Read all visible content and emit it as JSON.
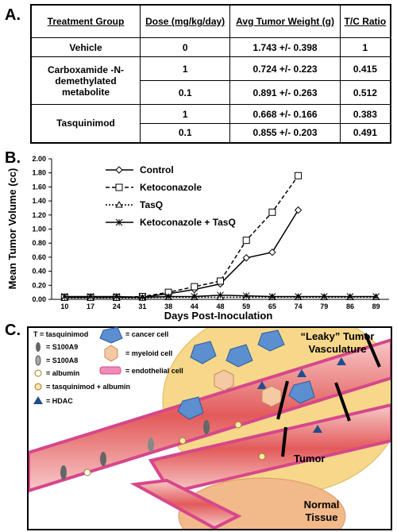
{
  "panel_labels": [
    "A.",
    "B.",
    "C."
  ],
  "table": {
    "header": [
      "Treatment Group",
      "Dose (mg/kg/day)",
      "Avg Tumor Weight (g)",
      "T/C Ratio"
    ],
    "groups": [
      {
        "name": "Vehicle",
        "rows": [
          [
            "0",
            "1.743 +/- 0.398",
            "1"
          ]
        ]
      },
      {
        "name": "Carboxamide -N-demethylated metabolite",
        "rows": [
          [
            "1",
            "0.724 +/- 0.223",
            "0.415"
          ],
          [
            "0.1",
            "0.891 +/- 0.263",
            "0.512"
          ]
        ]
      },
      {
        "name": "Tasquinimod",
        "rows": [
          [
            "1",
            "0.668 +/- 0.166",
            "0.383"
          ],
          [
            "0.1",
            "0.855 +/- 0.203",
            "0.491"
          ]
        ]
      }
    ]
  },
  "chart_data": {
    "type": "line",
    "xlabel": "Days Post-Inoculation",
    "ylabel": "Mean Tumor Volume (cc)",
    "categories": [
      10,
      17,
      24,
      31,
      38,
      44,
      48,
      59,
      65,
      74,
      79,
      86,
      89
    ],
    "ylim": [
      0,
      2
    ],
    "yticks": [
      {
        "value": 0,
        "label": "0.00"
      },
      {
        "value": 0.2,
        "label": "0.20"
      },
      {
        "value": 0.4,
        "label": "0.40"
      },
      {
        "value": 0.6,
        "label": "0.60"
      },
      {
        "value": 0.8,
        "label": "0.80"
      },
      {
        "value": 1,
        "label": "1.00"
      },
      {
        "value": 1.2,
        "label": "1.20"
      },
      {
        "value": 1.4,
        "label": "1.40"
      },
      {
        "value": 1.6,
        "label": "1.60"
      },
      {
        "value": 1.8,
        "label": "1.80"
      },
      {
        "value": 2,
        "label": "2.00"
      }
    ],
    "grid": false,
    "series": [
      {
        "name": "Control",
        "color": "#000000",
        "marker": "diamond",
        "dash": "none",
        "values": [
          0.03,
          0.03,
          0.03,
          0.03,
          0.08,
          0.14,
          0.22,
          0.59,
          0.67,
          1.27,
          null,
          null,
          null
        ]
      },
      {
        "name": "Ketoconazole",
        "color": "#000000",
        "marker": "square",
        "dash": "5,3",
        "values": [
          0.03,
          0.03,
          0.03,
          0.04,
          0.1,
          0.18,
          0.26,
          0.84,
          1.24,
          1.76,
          null,
          null,
          null
        ]
      },
      {
        "name": "TasQ",
        "color": "#000000",
        "marker": "triangle",
        "dash": "2,2",
        "values": [
          0.02,
          0.02,
          0.02,
          0.02,
          0.03,
          0.03,
          0.03,
          0.03,
          0.03,
          0.03,
          0.03,
          0.03,
          0.03
        ]
      },
      {
        "name": "Ketoconazole + TasQ",
        "color": "#000000",
        "marker": "star",
        "dash": "none",
        "values": [
          0.04,
          0.04,
          0.04,
          0.03,
          0.04,
          0.04,
          0.06,
          0.05,
          0.04,
          0.04,
          0.04,
          0.04,
          0.04
        ]
      }
    ]
  },
  "diagram": {
    "legend": [
      "T = tasquinimod",
      "= S100A9",
      "= S100A8",
      "= albumin",
      "= tasquinimod + albumin",
      "= HDAC",
      "= cancer cell",
      "= myeloid cell",
      "= endothelial cell"
    ],
    "vasculature_label": [
      "“Leaky” Tumor",
      "Vasculature"
    ],
    "tumor_label": "Tumor",
    "normal_label": [
      "Normal",
      "Tissue"
    ]
  }
}
